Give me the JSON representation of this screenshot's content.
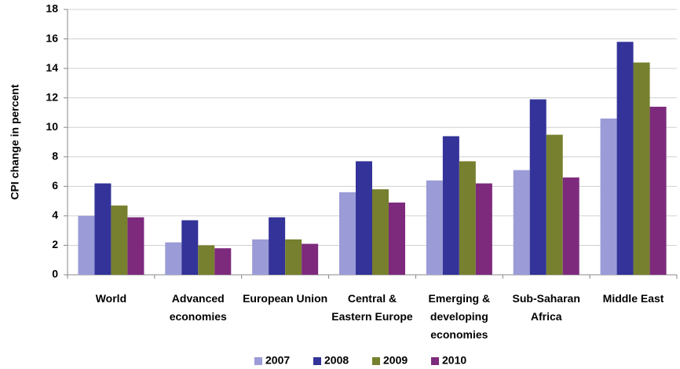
{
  "chart_data": {
    "type": "bar",
    "y_label": "CPI change in percent",
    "categories": [
      "World",
      "Advanced economies",
      "European Union",
      "Central & Eastern Europe",
      "Emerging & developing economies",
      "Sub-Saharan Africa",
      "Middle East"
    ],
    "series": [
      {
        "name": "2007",
        "color": "#9b9bd7",
        "values": [
          4.0,
          2.2,
          2.4,
          5.6,
          6.4,
          7.1,
          10.6
        ]
      },
      {
        "name": "2008",
        "color": "#333399",
        "values": [
          6.2,
          3.7,
          3.9,
          7.7,
          9.4,
          11.9,
          15.8
        ]
      },
      {
        "name": "2009",
        "color": "#77802e",
        "values": [
          4.7,
          2.0,
          2.4,
          5.8,
          7.7,
          9.5,
          14.4
        ]
      },
      {
        "name": "2010",
        "color": "#7d2a7d",
        "values": [
          3.9,
          1.8,
          2.1,
          4.9,
          6.2,
          6.6,
          11.4
        ]
      }
    ],
    "ylim": [
      0,
      18
    ],
    "yticks": [
      0,
      2,
      4,
      6,
      8,
      10,
      12,
      14,
      16,
      18
    ],
    "grid": true,
    "legend": "bottom"
  }
}
